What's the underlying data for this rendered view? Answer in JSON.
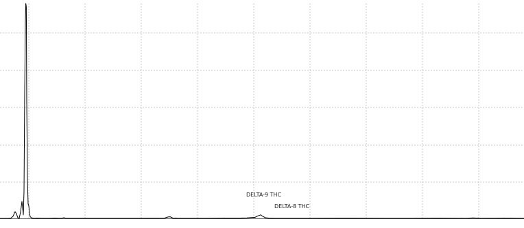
{
  "chart_data": {
    "type": "line",
    "title": "",
    "xlabel": "",
    "ylabel": "",
    "grid": true,
    "xlim": [
      0,
      764
    ],
    "ylim": [
      0,
      1200
    ],
    "series": [
      {
        "color": "#000000",
        "points": [
          [
            0,
            0
          ],
          [
            12,
            0
          ],
          [
            16,
            2
          ],
          [
            19,
            12
          ],
          [
            22,
            38
          ],
          [
            24,
            26
          ],
          [
            26,
            4
          ],
          [
            28,
            1
          ],
          [
            30,
            36
          ],
          [
            32,
            95
          ],
          [
            33,
            60
          ],
          [
            34,
            20
          ],
          [
            35,
            150
          ],
          [
            36,
            700
          ],
          [
            37,
            1100
          ],
          [
            37.6,
            1200
          ],
          [
            38.4,
            1180
          ],
          [
            39,
            650
          ],
          [
            40,
            220
          ],
          [
            41,
            80
          ],
          [
            42,
            70
          ],
          [
            43,
            30
          ],
          [
            44,
            10
          ],
          [
            46,
            3
          ],
          [
            50,
            1
          ],
          [
            54,
            2
          ],
          [
            60,
            1
          ],
          [
            70,
            1
          ],
          [
            80,
            2
          ],
          [
            90,
            1
          ],
          [
            93,
            4
          ],
          [
            96,
            1
          ],
          [
            120,
            1
          ],
          [
            200,
            1
          ],
          [
            240,
            2
          ],
          [
            245,
            8
          ],
          [
            248,
            9
          ],
          [
            252,
            2
          ],
          [
            260,
            1
          ],
          [
            300,
            1
          ],
          [
            330,
            2
          ],
          [
            350,
            2
          ],
          [
            360,
            3
          ],
          [
            366,
            5
          ],
          [
            372,
            6
          ],
          [
            376,
            14
          ],
          [
            380,
            20
          ],
          [
            383,
            12
          ],
          [
            387,
            4
          ],
          [
            392,
            2
          ],
          [
            400,
            1
          ],
          [
            450,
            1
          ],
          [
            500,
            2
          ],
          [
            560,
            1
          ],
          [
            600,
            1
          ],
          [
            640,
            2
          ],
          [
            680,
            1
          ],
          [
            690,
            3
          ],
          [
            700,
            1
          ],
          [
            740,
            2
          ],
          [
            764,
            1
          ]
        ]
      }
    ],
    "annotations": [
      {
        "text": "DELTA-9 THC",
        "x": 380,
        "y": 20
      },
      {
        "text": "DELTA-8 THC",
        "x": 387,
        "y": 4
      }
    ]
  }
}
